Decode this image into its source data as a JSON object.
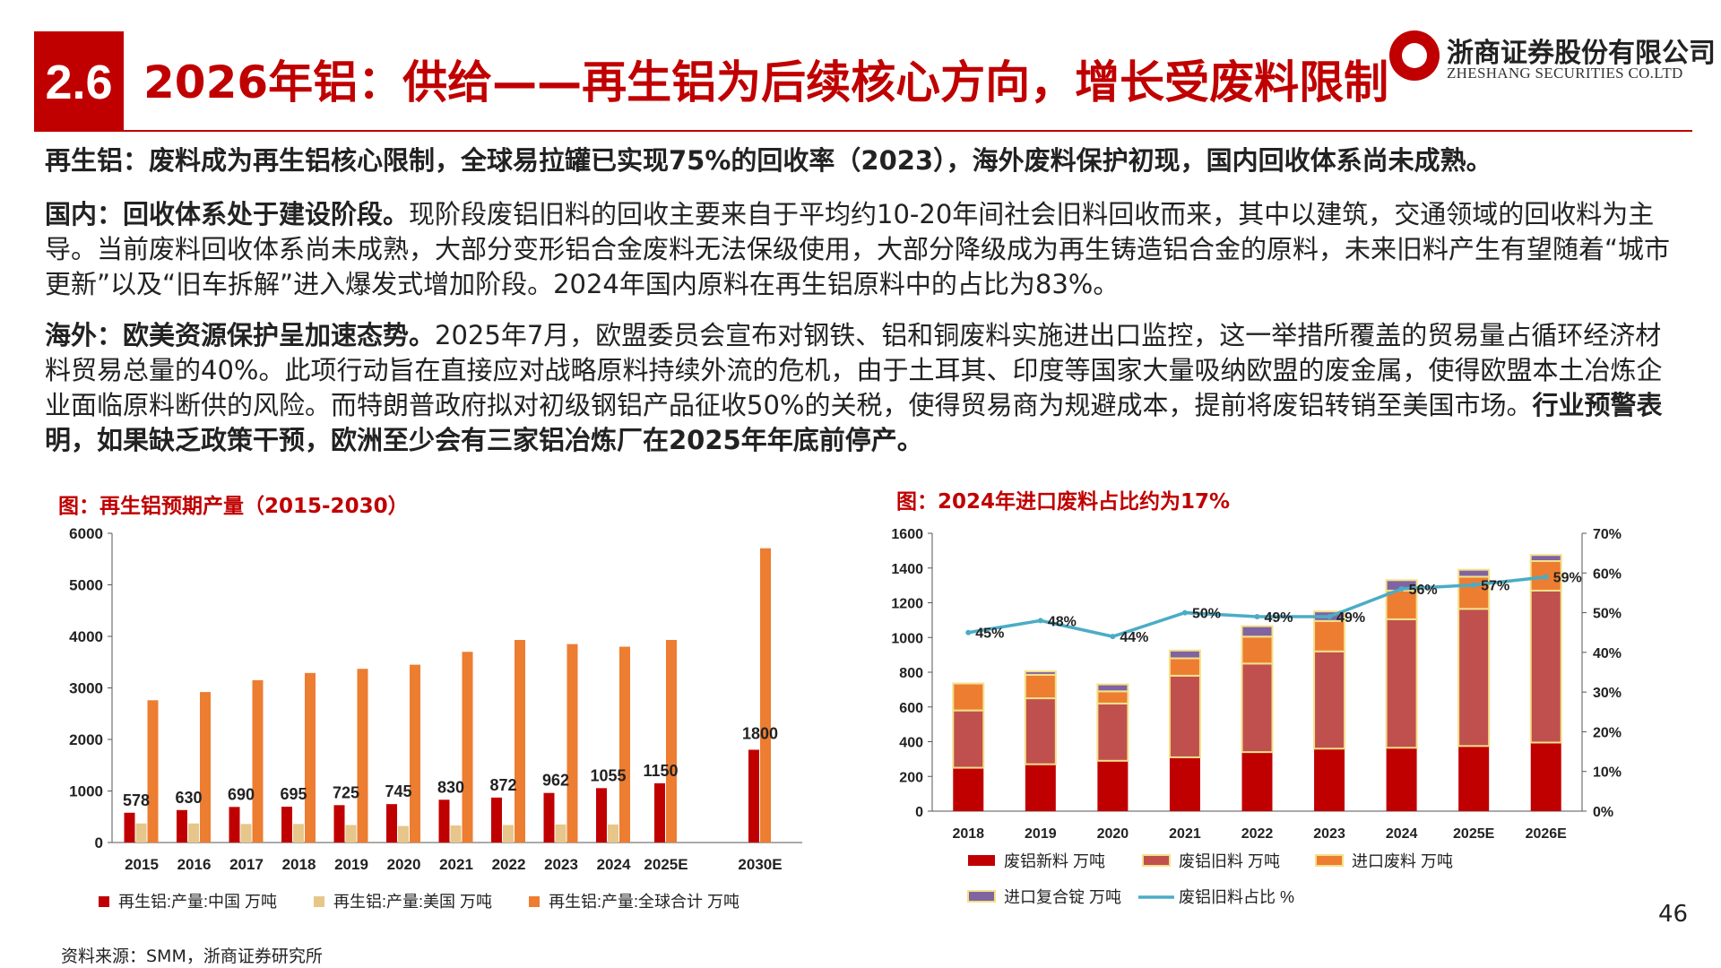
{
  "header": {
    "section_number": "2.6",
    "title": "2026年铝：供给——再生铝为后续核心方向，增长受废料限制",
    "logo_cn": "浙商证券股份有限公司",
    "logo_en": "ZHESHANG SECURITIES CO.LTD"
  },
  "body": {
    "p1": "再生铝：废料成为再生铝核心限制，全球易拉罐已实现75%的回收率（2023），海外废料保护初现，国内回收体系尚未成熟。",
    "p2_bold": "国内：回收体系处于建设阶段。",
    "p2_text": "现阶段废铝旧料的回收主要来自于平均约10-20年间社会旧料回收而来，其中以建筑，交通领域的回收料为主导。当前废料回收体系尚未成熟，大部分变形铝合金废料无法保级使用，大部分降级成为再生铸造铝合金的原料，未来旧料产生有望随着“城市更新”以及“旧车拆解”进入爆发式增加阶段。2024年国内原料在再生铝原料中的占比为83%。",
    "p3_bold": "海外：欧美资源保护呈加速态势。",
    "p3_text": "2025年7月，欧盟委员会宣布对钢铁、铝和铜废料实施进出口监控，这一举措所覆盖的贸易量占循环经济材料贸易总量的40%。此项行动旨在直接应对战略原料持续外流的危机，由于土耳其、印度等国家大量吸纳欧盟的废金属，使得欧盟本土冶炼企业面临原料断供的风险。而特朗普政府拟对初级钢铝产品征收50%的关税，使得贸易商为规避成本，提前将废铝转销至美国市场。",
    "p3_bold_end": "行业预警表明，如果缺乏政策干预，欧洲至少会有三家铝冶炼厂在2025年年底前停产。"
  },
  "footer": {
    "source": "资料来源：SMM，浙商证券研究所",
    "page": "46"
  },
  "colors": {
    "red": "#c00000",
    "tan": "#e6c68a",
    "orange": "#ed7d31",
    "brick": "#c0504d",
    "purple": "#8064a2",
    "yellow_edge": "#f3e08a",
    "teal": "#4bacc6"
  },
  "chart_data": [
    {
      "type": "bar",
      "title": "图：再生铝预期产量（2015-2030）",
      "categories": [
        "2015",
        "2016",
        "2017",
        "2018",
        "2019",
        "2020",
        "2021",
        "2022",
        "2023",
        "2024",
        "2025E",
        "2030E"
      ],
      "series": [
        {
          "name": "再生铝:产量:中国 万吨",
          "values": [
            578,
            630,
            690,
            695,
            725,
            745,
            830,
            872,
            962,
            1055,
            1150,
            1800
          ]
        },
        {
          "name": "再生铝:产量:美国 万吨",
          "values": [
            370,
            370,
            360,
            360,
            340,
            320,
            330,
            340,
            350,
            350,
            null,
            null
          ]
        },
        {
          "name": "再生铝:产量:全球合计 万吨",
          "values": [
            2760,
            2920,
            3150,
            3290,
            3370,
            3450,
            3700,
            3930,
            3850,
            3800,
            3930,
            5710
          ]
        }
      ],
      "data_labels": [
        "578",
        "630",
        "690",
        "695",
        "725",
        "745",
        "830",
        "872",
        "962",
        "1055",
        "1150",
        "1800"
      ],
      "ylim": [
        0,
        6000
      ],
      "yticks": [
        "0",
        "1000",
        "2000",
        "3000",
        "4000",
        "5000",
        "6000"
      ],
      "legend": "bottom"
    },
    {
      "type": "bar",
      "title": "图：2024年进口废料占比约为17%",
      "categories": [
        "2018",
        "2019",
        "2020",
        "2021",
        "2022",
        "2023",
        "2024",
        "2025E",
        "2026E"
      ],
      "series": [
        {
          "name": "废铝新料 万吨",
          "values": [
            250,
            270,
            290,
            310,
            340,
            360,
            365,
            375,
            395
          ]
        },
        {
          "name": "废铝旧料 万吨",
          "values": [
            330,
            380,
            330,
            470,
            510,
            560,
            740,
            790,
            875
          ]
        },
        {
          "name": "进口废料 万吨",
          "values": [
            155,
            135,
            70,
            100,
            155,
            175,
            165,
            185,
            170
          ]
        },
        {
          "name": "进口复合锭 万吨",
          "values": [
            0,
            20,
            40,
            45,
            60,
            55,
            60,
            40,
            35
          ]
        },
        {
          "name": "废铝旧料占比 %",
          "axis": "right",
          "values": [
            45,
            48,
            44,
            50,
            49,
            49,
            56,
            57,
            59
          ]
        }
      ],
      "line_labels": [
        "45%",
        "48%",
        "44%",
        "50%",
        "49%",
        "49%",
        "56%",
        "57%",
        "59%"
      ],
      "ylim": [
        0,
        1600
      ],
      "yticks": [
        "0",
        "200",
        "400",
        "600",
        "800",
        "1000",
        "1200",
        "1400",
        "1600"
      ],
      "y2lim": [
        0,
        70
      ],
      "y2ticks": [
        "0%",
        "10%",
        "20%",
        "30%",
        "40%",
        "50%",
        "60%",
        "70%"
      ],
      "legend": "bottom"
    }
  ]
}
